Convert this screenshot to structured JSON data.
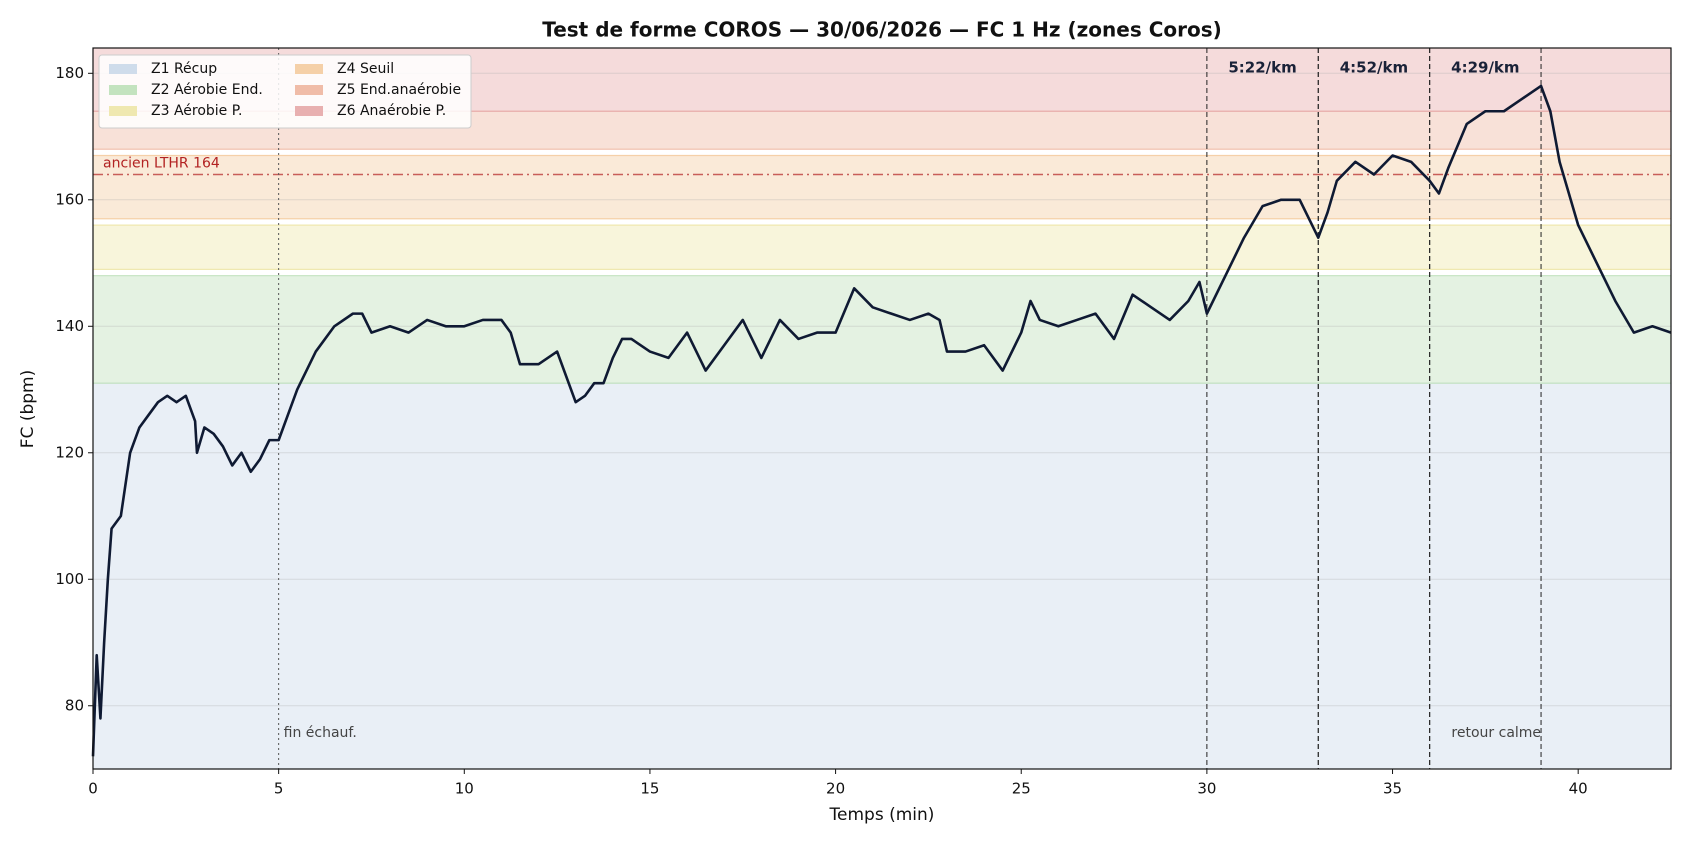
{
  "chart_data": {
    "type": "line",
    "title": "Test de forme COROS — 30/06/2026 — FC 1 Hz (zones Coros)",
    "xlabel": "Temps (min)",
    "ylabel": "FC (bpm)",
    "xlim": [
      0,
      42.5
    ],
    "ylim": [
      70,
      184
    ],
    "xticks": [
      0,
      5,
      10,
      15,
      20,
      25,
      30,
      35,
      40
    ],
    "yticks": [
      80,
      100,
      120,
      140,
      160,
      180
    ],
    "grid": true,
    "legend": "upper left",
    "zones": [
      {
        "name": "Z1 Récup",
        "ymax": 131,
        "color": "#cfdceb"
      },
      {
        "name": "Z2 Aérobie End.",
        "ymin": 131,
        "ymax": 148,
        "color": "#c3e3bf"
      },
      {
        "name": "Z3 Aérobie P.",
        "ymin": 149,
        "ymax": 156,
        "color": "#efe8b0"
      },
      {
        "name": "Z4 Seuil",
        "ymin": 157,
        "ymax": 167,
        "color": "#f5d0a8"
      },
      {
        "name": "Z5 End.anaérobie",
        "ymin": 168,
        "ymax": 174,
        "color": "#f0bca8"
      },
      {
        "name": "Z6 Anaérobie P.",
        "ymin": 174,
        "color": "#e8b0b0"
      }
    ],
    "reference_line": {
      "value": 164,
      "label": "ancien LTHR 164",
      "color": "#b22222"
    },
    "warmup": {
      "x": 5,
      "label": "fin échauf."
    },
    "cooldown": {
      "x": 39,
      "label": "retour calme"
    },
    "segments": [
      {
        "start": 30,
        "end": 33,
        "label": "5:22/km"
      },
      {
        "start": 33,
        "end": 36,
        "label": "4:52/km"
      },
      {
        "start": 36,
        "end": 39,
        "label": "4:29/km"
      }
    ],
    "x": [
      0,
      0.1,
      0.2,
      0.3,
      0.4,
      0.5,
      0.75,
      1,
      1.25,
      1.5,
      1.75,
      2,
      2.25,
      2.5,
      2.75,
      2.8,
      3,
      3.25,
      3.5,
      3.75,
      4,
      4.25,
      4.5,
      4.75,
      5,
      5.25,
      5.5,
      5.75,
      6,
      6.5,
      7,
      7.25,
      7.5,
      8,
      8.5,
      9,
      9.5,
      10,
      10.5,
      11,
      11.25,
      11.5,
      12,
      12.5,
      13,
      13.25,
      13.5,
      13.75,
      14,
      14.25,
      14.5,
      15,
      15.5,
      16,
      16.5,
      17,
      17.5,
      18,
      18.5,
      19,
      19.5,
      20,
      20.5,
      21,
      21.5,
      22,
      22.5,
      22.8,
      23,
      23.5,
      24,
      24.5,
      25,
      25.25,
      25.5,
      26,
      26.5,
      27,
      27.5,
      28,
      28.5,
      29,
      29.5,
      29.8,
      30,
      30.5,
      31,
      31.5,
      32,
      32.5,
      33,
      33.25,
      33.5,
      34,
      34.5,
      35,
      35.5,
      36,
      36.25,
      36.5,
      37,
      37.5,
      38,
      38.5,
      39,
      39.25,
      39.5,
      40,
      40.5,
      41,
      41.5,
      42,
      42.5
    ],
    "series": [
      {
        "name": "FC",
        "color": "#0f1a33",
        "values": [
          72,
          88,
          78,
          90,
          100,
          108,
          110,
          120,
          124,
          126,
          128,
          129,
          128,
          129,
          125,
          120,
          124,
          123,
          121,
          118,
          120,
          117,
          119,
          122,
          122,
          126,
          130,
          133,
          136,
          140,
          142,
          142,
          139,
          140,
          139,
          141,
          140,
          140,
          141,
          141,
          139,
          134,
          134,
          136,
          128,
          129,
          131,
          131,
          135,
          138,
          138,
          136,
          135,
          139,
          133,
          137,
          141,
          135,
          141,
          138,
          139,
          139,
          146,
          143,
          142,
          141,
          142,
          141,
          136,
          136,
          137,
          133,
          139,
          144,
          141,
          140,
          141,
          142,
          138,
          145,
          143,
          141,
          144,
          147,
          142,
          148,
          154,
          159,
          160,
          160,
          154,
          158,
          163,
          166,
          164,
          167,
          166,
          163,
          161,
          165,
          172,
          174,
          174,
          176,
          178,
          174,
          166,
          156,
          150,
          144,
          139,
          140,
          139
        ]
      }
    ]
  }
}
